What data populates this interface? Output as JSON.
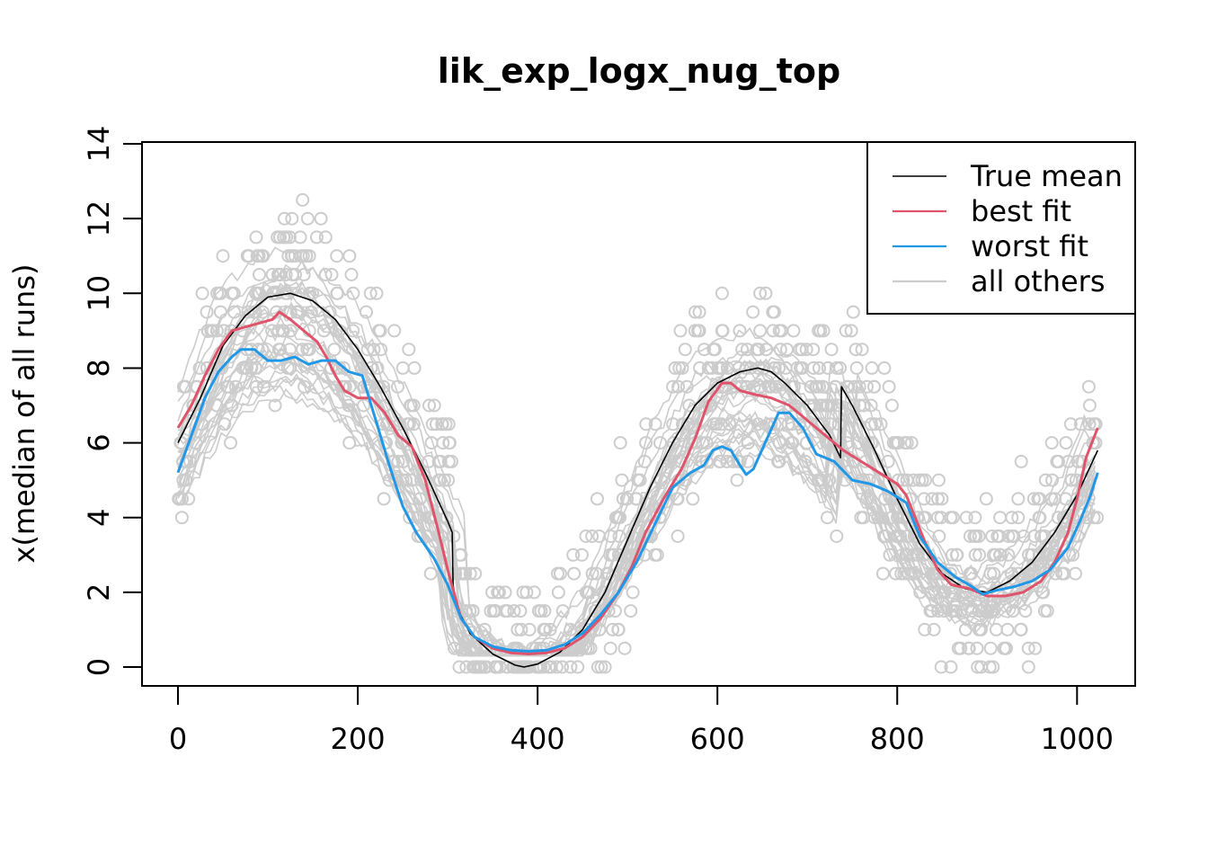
{
  "chart_data": {
    "type": "scatter",
    "title": "lik_exp_logx_nug_top",
    "xlabel": "",
    "ylabel": "x(median of all runs)",
    "xlim": [
      0,
      1023
    ],
    "ylim": [
      0,
      14
    ],
    "x_ticks": [
      0,
      200,
      400,
      600,
      800,
      1000
    ],
    "y_ticks": [
      0,
      2,
      4,
      6,
      8,
      10,
      12,
      14
    ],
    "x_tick_labels": [
      "0",
      "200",
      "400",
      "600",
      "800",
      "1000"
    ],
    "y_tick_labels": [
      "0",
      "2",
      "4",
      "6",
      "8",
      "10",
      "12",
      "14"
    ],
    "grid": false,
    "legend": {
      "position": "top-right",
      "entries": [
        {
          "label": "True mean",
          "color": "#000000"
        },
        {
          "label": "best fit",
          "color": "#DF536B"
        },
        {
          "label": "worst fit",
          "color": "#2297E6"
        },
        {
          "label": "all others",
          "color": "#CCCCCC"
        }
      ]
    },
    "series": [
      {
        "name": "True mean",
        "color": "#000000",
        "x": [
          0,
          25,
          50,
          75,
          100,
          125,
          150,
          175,
          200,
          225,
          250,
          275,
          300,
          305,
          306,
          310,
          325,
          350,
          375,
          385,
          400,
          425,
          450,
          475,
          500,
          525,
          550,
          575,
          600,
          625,
          645,
          660,
          675,
          700,
          725,
          737,
          738,
          750,
          775,
          800,
          825,
          850,
          875,
          900,
          925,
          950,
          975,
          1000,
          1023
        ],
        "values": [
          6.0,
          7.2,
          8.6,
          9.4,
          9.9,
          10.0,
          9.8,
          9.3,
          8.5,
          7.5,
          6.4,
          5.2,
          3.9,
          3.6,
          2.2,
          1.6,
          0.9,
          0.35,
          0.05,
          0.0,
          0.08,
          0.4,
          1.0,
          2.0,
          3.4,
          4.8,
          6.0,
          7.0,
          7.6,
          7.9,
          8.0,
          7.9,
          7.6,
          7.0,
          6.2,
          5.6,
          7.5,
          7.0,
          5.8,
          4.5,
          3.3,
          2.5,
          2.1,
          2.0,
          2.3,
          2.8,
          3.6,
          4.6,
          5.8
        ]
      },
      {
        "name": "best fit",
        "color": "#DF536B",
        "x": [
          0,
          15,
          30,
          45,
          60,
          75,
          90,
          105,
          113,
          125,
          140,
          155,
          165,
          175,
          185,
          200,
          215,
          230,
          245,
          260,
          275,
          290,
          300,
          315,
          330,
          350,
          370,
          390,
          410,
          430,
          450,
          470,
          490,
          505,
          520,
          540,
          560,
          575,
          590,
          605,
          615,
          625,
          640,
          660,
          680,
          700,
          720,
          740,
          760,
          780,
          800,
          810,
          820,
          830,
          845,
          860,
          880,
          900,
          920,
          940,
          960,
          975,
          990,
          1000,
          1010,
          1023
        ],
        "values": [
          6.4,
          7.0,
          7.8,
          8.5,
          9.0,
          9.1,
          9.2,
          9.3,
          9.5,
          9.3,
          9.0,
          8.7,
          8.3,
          7.8,
          7.4,
          7.2,
          7.2,
          6.8,
          6.2,
          5.9,
          5.0,
          3.6,
          2.6,
          1.3,
          0.8,
          0.5,
          0.38,
          0.35,
          0.38,
          0.5,
          0.8,
          1.3,
          2.0,
          2.7,
          3.6,
          4.5,
          5.3,
          6.1,
          7.1,
          7.6,
          7.6,
          7.4,
          7.3,
          7.2,
          7.0,
          6.6,
          6.2,
          5.8,
          5.5,
          5.2,
          4.9,
          4.6,
          4.0,
          3.4,
          2.6,
          2.2,
          2.1,
          1.9,
          1.9,
          2.0,
          2.3,
          2.8,
          3.6,
          4.5,
          5.6,
          6.4
        ]
      },
      {
        "name": "worst fit",
        "color": "#2297E6",
        "x": [
          0,
          15,
          30,
          45,
          60,
          70,
          85,
          100,
          115,
          130,
          145,
          160,
          175,
          190,
          205,
          220,
          235,
          250,
          265,
          285,
          300,
          315,
          330,
          350,
          370,
          390,
          410,
          430,
          450,
          470,
          490,
          510,
          530,
          550,
          570,
          585,
          595,
          605,
          615,
          625,
          632,
          640,
          655,
          668,
          680,
          695,
          710,
          730,
          750,
          770,
          790,
          810,
          825,
          845,
          865,
          880,
          895,
          910,
          930,
          950,
          970,
          990,
          1005,
          1015,
          1023
        ],
        "values": [
          5.2,
          6.2,
          7.2,
          7.9,
          8.3,
          8.5,
          8.5,
          8.2,
          8.2,
          8.3,
          8.1,
          8.2,
          8.2,
          7.9,
          7.8,
          6.6,
          5.4,
          4.3,
          3.6,
          2.9,
          2.2,
          1.3,
          0.8,
          0.55,
          0.45,
          0.42,
          0.45,
          0.6,
          0.9,
          1.4,
          2.0,
          2.8,
          3.8,
          4.8,
          5.2,
          5.4,
          5.8,
          5.9,
          5.8,
          5.4,
          5.15,
          5.3,
          6.1,
          6.8,
          6.8,
          6.4,
          5.7,
          5.5,
          5.0,
          4.9,
          4.7,
          4.4,
          3.5,
          2.8,
          2.4,
          2.2,
          1.95,
          2.05,
          2.15,
          2.3,
          2.6,
          3.2,
          4.0,
          4.6,
          5.2
        ]
      }
    ],
    "others_style": {
      "color": "#CCCCCC",
      "marker": "open-circle"
    }
  }
}
